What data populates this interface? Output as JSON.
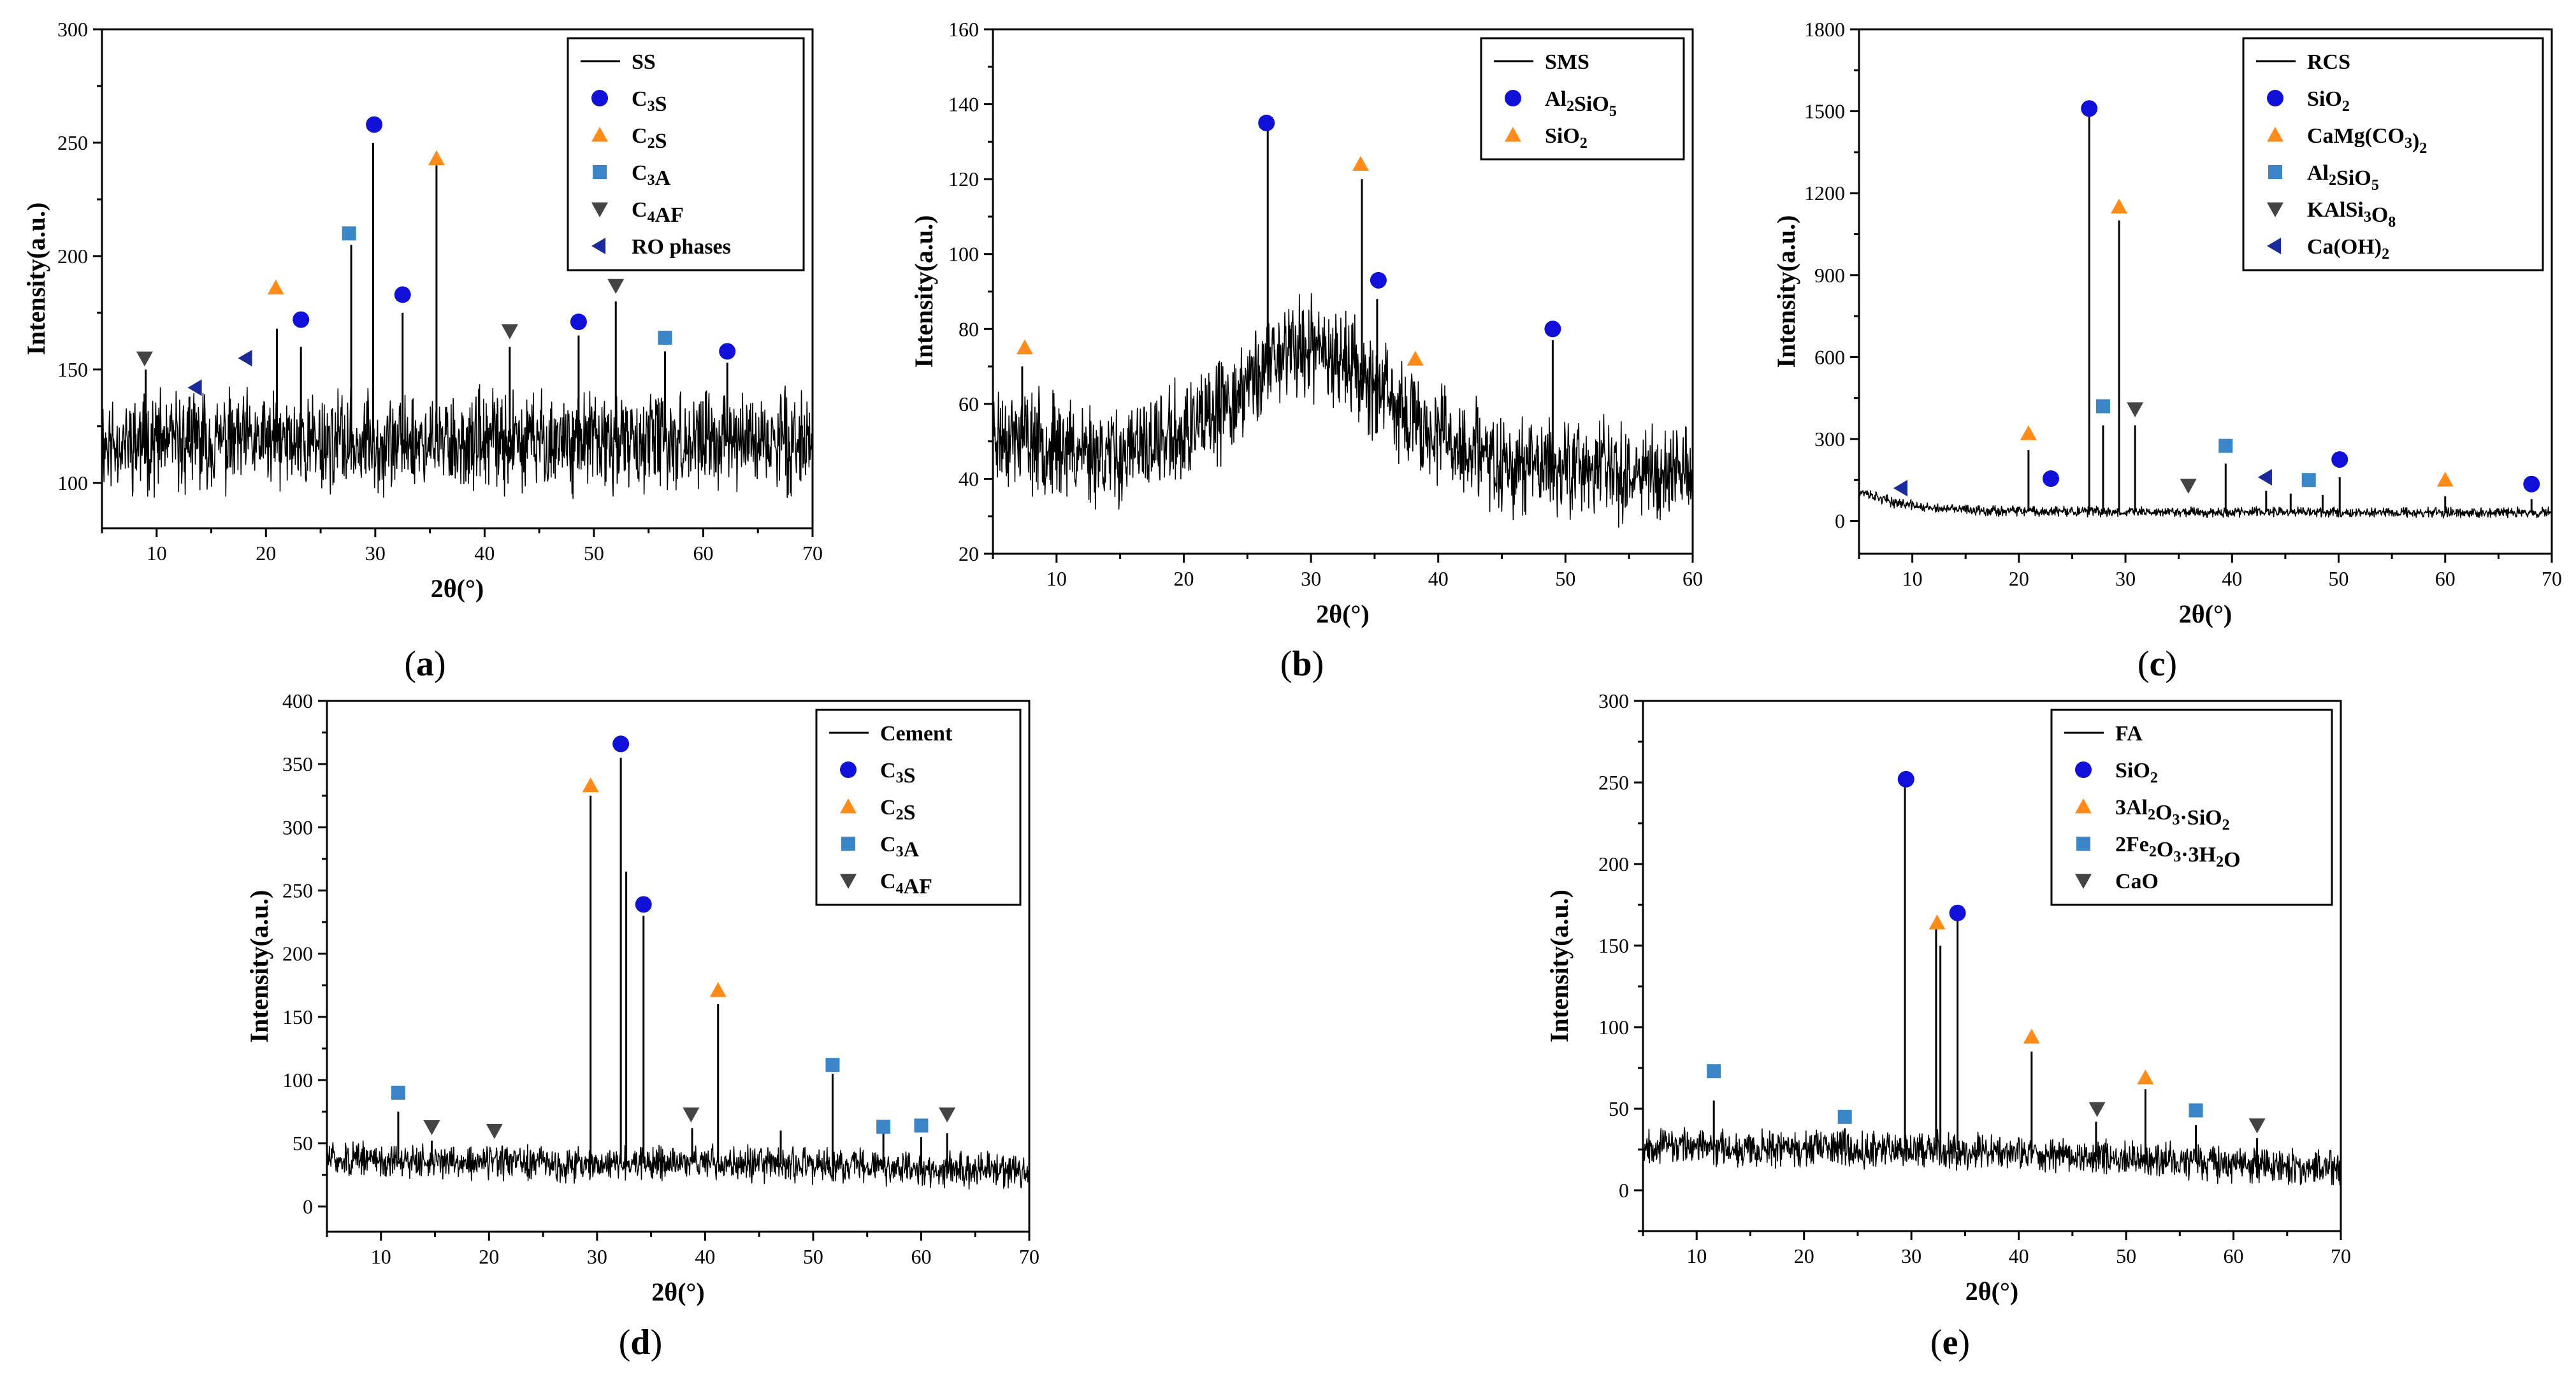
{
  "colors": {
    "circle": "#1010d8",
    "triangle_up": "#ff8c1a",
    "square": "#3a86c8",
    "triangle_down": "#444444",
    "triangle_left": "#1a2a9a",
    "trace": "#000000"
  },
  "chart_data": [
    {
      "id": "a",
      "type": "line",
      "panel_label": "a",
      "xlabel": "2θ(°)",
      "ylabel": "Intensity(a.u.)",
      "xlim": [
        5,
        70
      ],
      "ylim": [
        80,
        300
      ],
      "xticks": [
        10,
        20,
        30,
        40,
        50,
        60,
        70
      ],
      "yticks": [
        100,
        150,
        200,
        250,
        300
      ],
      "background": {
        "baseline": [
          [
            5,
            118
          ],
          [
            70,
            118
          ]
        ],
        "noise": 16,
        "seed": 11
      },
      "peaks": [
        [
          9,
          150
        ],
        [
          13,
          138
        ],
        [
          21,
          168
        ],
        [
          23.2,
          160
        ],
        [
          27.8,
          205
        ],
        [
          29.8,
          250
        ],
        [
          32.5,
          175
        ],
        [
          35.6,
          240
        ],
        [
          42.3,
          160
        ],
        [
          48.6,
          165
        ],
        [
          52,
          180
        ],
        [
          56.5,
          158
        ],
        [
          62.2,
          153
        ]
      ],
      "legend": {
        "position": "top-right",
        "entries": [
          {
            "label": "SS",
            "marker": "line"
          },
          {
            "label": "C₃S",
            "marker": "circle"
          },
          {
            "label": "C₂S",
            "marker": "triangle_up"
          },
          {
            "label": "C₃A",
            "marker": "square"
          },
          {
            "label": "C₄AF",
            "marker": "triangle_down"
          },
          {
            "label": "RO phases",
            "marker": "triangle_left"
          }
        ]
      },
      "markers": [
        {
          "x": 8.9,
          "y": 155,
          "shape": "triangle_down"
        },
        {
          "x": 13.6,
          "y": 142,
          "shape": "triangle_left"
        },
        {
          "x": 18.2,
          "y": 155,
          "shape": "triangle_left"
        },
        {
          "x": 20.9,
          "y": 186,
          "shape": "triangle_up"
        },
        {
          "x": 23.2,
          "y": 172,
          "shape": "circle"
        },
        {
          "x": 27.6,
          "y": 210,
          "shape": "square"
        },
        {
          "x": 29.9,
          "y": 258,
          "shape": "circle"
        },
        {
          "x": 32.5,
          "y": 183,
          "shape": "circle"
        },
        {
          "x": 35.6,
          "y": 243,
          "shape": "triangle_up"
        },
        {
          "x": 42.3,
          "y": 167,
          "shape": "triangle_down"
        },
        {
          "x": 48.6,
          "y": 171,
          "shape": "circle"
        },
        {
          "x": 52,
          "y": 187,
          "shape": "triangle_down"
        },
        {
          "x": 56.5,
          "y": 164,
          "shape": "square"
        },
        {
          "x": 62.2,
          "y": 158,
          "shape": "circle"
        }
      ]
    },
    {
      "id": "b",
      "type": "line",
      "panel_label": "b",
      "xlabel": "2θ(°)",
      "ylabel": "Intensity(a.u.)",
      "xlim": [
        5,
        60
      ],
      "ylim": [
        20,
        160
      ],
      "xticks": [
        10,
        20,
        30,
        40,
        50,
        60
      ],
      "yticks": [
        20,
        40,
        60,
        80,
        100,
        120,
        140,
        160
      ],
      "background": {
        "baseline": [
          [
            5,
            52
          ],
          [
            15,
            46
          ],
          [
            22,
            55
          ],
          [
            28,
            75
          ],
          [
            32,
            74
          ],
          [
            38,
            55
          ],
          [
            45,
            44
          ],
          [
            60,
            42
          ]
        ],
        "noise": 10,
        "seed": 23
      },
      "peaks": [
        [
          7.3,
          70
        ],
        [
          26.6,
          133
        ],
        [
          34,
          120
        ],
        [
          35.2,
          88
        ],
        [
          38.1,
          66
        ],
        [
          49,
          77
        ]
      ],
      "legend": {
        "position": "top-right",
        "entries": [
          {
            "label": "SMS",
            "marker": "line"
          },
          {
            "label": "Al₂SiO₅",
            "marker": "circle"
          },
          {
            "label": "SiO₂",
            "marker": "triangle_up"
          }
        ]
      },
      "markers": [
        {
          "x": 7.5,
          "y": 75,
          "shape": "triangle_up"
        },
        {
          "x": 26.5,
          "y": 135,
          "shape": "circle"
        },
        {
          "x": 33.9,
          "y": 124,
          "shape": "triangle_up"
        },
        {
          "x": 35.3,
          "y": 93,
          "shape": "circle"
        },
        {
          "x": 38.2,
          "y": 72,
          "shape": "triangle_up"
        },
        {
          "x": 49,
          "y": 80,
          "shape": "circle"
        }
      ]
    },
    {
      "id": "c",
      "type": "line",
      "panel_label": "c",
      "xlabel": "2θ(°)",
      "ylabel": "Intensity(a.u.)",
      "xlim": [
        5,
        70
      ],
      "ylim": [
        -120,
        1800
      ],
      "xticks": [
        10,
        20,
        30,
        40,
        50,
        60,
        70
      ],
      "yticks": [
        0,
        300,
        600,
        900,
        1200,
        1500,
        1800
      ],
      "background": {
        "baseline": [
          [
            5,
            110
          ],
          [
            8,
            70
          ],
          [
            12,
            45
          ],
          [
            20,
            35
          ],
          [
            70,
            30
          ]
        ],
        "noise": 14,
        "seed": 37
      },
      "peaks": [
        [
          20.9,
          260
        ],
        [
          26.6,
          1500
        ],
        [
          27.9,
          350
        ],
        [
          29.4,
          1100
        ],
        [
          30.9,
          350
        ],
        [
          39.4,
          210
        ],
        [
          43.2,
          110
        ],
        [
          45.5,
          100
        ],
        [
          48.5,
          95
        ],
        [
          50.1,
          160
        ],
        [
          60,
          90
        ],
        [
          68.1,
          80
        ]
      ],
      "legend": {
        "position": "top-right",
        "entries": [
          {
            "label": "RCS",
            "marker": "line"
          },
          {
            "label": "SiO₂",
            "marker": "circle"
          },
          {
            "label": "CaMg(CO₃)₂",
            "marker": "triangle_up"
          },
          {
            "label": "Al₂SiO₅",
            "marker": "square"
          },
          {
            "label": "KAlSi₃O₈",
            "marker": "triangle_down"
          },
          {
            "label": "Ca(OH)₂",
            "marker": "triangle_left"
          }
        ]
      },
      "markers": [
        {
          "x": 9,
          "y": 120,
          "shape": "triangle_left"
        },
        {
          "x": 20.9,
          "y": 320,
          "shape": "triangle_up"
        },
        {
          "x": 23,
          "y": 155,
          "shape": "circle"
        },
        {
          "x": 26.6,
          "y": 1510,
          "shape": "circle"
        },
        {
          "x": 27.9,
          "y": 420,
          "shape": "square"
        },
        {
          "x": 29.4,
          "y": 1150,
          "shape": "triangle_up"
        },
        {
          "x": 30.9,
          "y": 410,
          "shape": "triangle_down"
        },
        {
          "x": 35.9,
          "y": 130,
          "shape": "triangle_down"
        },
        {
          "x": 39.4,
          "y": 275,
          "shape": "square"
        },
        {
          "x": 43.2,
          "y": 160,
          "shape": "triangle_left"
        },
        {
          "x": 47.2,
          "y": 150,
          "shape": "square"
        },
        {
          "x": 50.1,
          "y": 225,
          "shape": "circle"
        },
        {
          "x": 60,
          "y": 150,
          "shape": "triangle_up"
        },
        {
          "x": 68.1,
          "y": 135,
          "shape": "circle"
        }
      ]
    },
    {
      "id": "d",
      "type": "line",
      "panel_label": "d",
      "xlabel": "2θ(°)",
      "ylabel": "Intensity(a.u.)",
      "xlim": [
        5,
        70
      ],
      "ylim": [
        -20,
        400
      ],
      "xticks": [
        10,
        20,
        30,
        40,
        50,
        60,
        70
      ],
      "yticks": [
        0,
        50,
        100,
        150,
        200,
        250,
        300,
        350,
        400
      ],
      "background": {
        "baseline": [
          [
            5,
            38
          ],
          [
            28,
            33
          ],
          [
            40,
            35
          ],
          [
            70,
            27
          ]
        ],
        "noise": 10,
        "seed": 51
      },
      "peaks": [
        [
          11.6,
          75
        ],
        [
          14.7,
          52
        ],
        [
          29.4,
          325
        ],
        [
          32.2,
          355
        ],
        [
          32.7,
          265
        ],
        [
          34.3,
          230
        ],
        [
          38.8,
          62
        ],
        [
          41.2,
          160
        ],
        [
          47,
          60
        ],
        [
          51.8,
          105
        ],
        [
          56.5,
          58
        ],
        [
          60,
          55
        ],
        [
          62.4,
          58
        ]
      ],
      "legend": {
        "position": "top-right",
        "entries": [
          {
            "label": "Cement",
            "marker": "line"
          },
          {
            "label": "C₃S",
            "marker": "circle"
          },
          {
            "label": "C₂S",
            "marker": "triangle_up"
          },
          {
            "label": "C₃A",
            "marker": "square"
          },
          {
            "label": "C₄AF",
            "marker": "triangle_down"
          }
        ]
      },
      "markers": [
        {
          "x": 11.6,
          "y": 90,
          "shape": "square"
        },
        {
          "x": 14.7,
          "y": 63,
          "shape": "triangle_down"
        },
        {
          "x": 20.5,
          "y": 60,
          "shape": "triangle_down"
        },
        {
          "x": 29.4,
          "y": 333,
          "shape": "triangle_up"
        },
        {
          "x": 32.2,
          "y": 366,
          "shape": "circle"
        },
        {
          "x": 34.3,
          "y": 239,
          "shape": "circle"
        },
        {
          "x": 38.7,
          "y": 73,
          "shape": "triangle_down"
        },
        {
          "x": 41.2,
          "y": 171,
          "shape": "triangle_up"
        },
        {
          "x": 51.8,
          "y": 112,
          "shape": "square"
        },
        {
          "x": 56.5,
          "y": 63,
          "shape": "square"
        },
        {
          "x": 60,
          "y": 64,
          "shape": "square"
        },
        {
          "x": 62.4,
          "y": 73,
          "shape": "triangle_down"
        }
      ]
    },
    {
      "id": "e",
      "type": "line",
      "panel_label": "e",
      "xlabel": "2θ(°)",
      "ylabel": "Intensity(a.u.)",
      "xlim": [
        5,
        70
      ],
      "ylim": [
        -25,
        300
      ],
      "xticks": [
        10,
        20,
        30,
        40,
        50,
        60,
        70
      ],
      "yticks": [
        0,
        50,
        100,
        150,
        200,
        250,
        300
      ],
      "background": {
        "baseline": [
          [
            5,
            28
          ],
          [
            20,
            25
          ],
          [
            30,
            26
          ],
          [
            70,
            13
          ]
        ],
        "noise": 8,
        "seed": 67
      },
      "peaks": [
        [
          11.6,
          55
        ],
        [
          23.8,
          38
        ],
        [
          29.4,
          250
        ],
        [
          32.3,
          160
        ],
        [
          32.7,
          150
        ],
        [
          34.3,
          165
        ],
        [
          41.2,
          85
        ],
        [
          47.2,
          42
        ],
        [
          51.8,
          62
        ],
        [
          56.5,
          40
        ],
        [
          62.2,
          32
        ]
      ],
      "legend": {
        "position": "top-right",
        "entries": [
          {
            "label": "FA",
            "marker": "line"
          },
          {
            "label": "SiO₂",
            "marker": "circle"
          },
          {
            "label": "3Al₂O₃·SiO₂",
            "marker": "triangle_up"
          },
          {
            "label": "2Fe₂O₃·3H₂O",
            "marker": "square"
          },
          {
            "label": "CaO",
            "marker": "triangle_down"
          }
        ]
      },
      "markers": [
        {
          "x": 11.6,
          "y": 73,
          "shape": "square"
        },
        {
          "x": 23.8,
          "y": 45,
          "shape": "square"
        },
        {
          "x": 29.5,
          "y": 252,
          "shape": "circle"
        },
        {
          "x": 32.4,
          "y": 164,
          "shape": "triangle_up"
        },
        {
          "x": 34.3,
          "y": 170,
          "shape": "circle"
        },
        {
          "x": 41.2,
          "y": 94,
          "shape": "triangle_up"
        },
        {
          "x": 47.3,
          "y": 50,
          "shape": "triangle_down"
        },
        {
          "x": 51.8,
          "y": 69,
          "shape": "triangle_up"
        },
        {
          "x": 56.5,
          "y": 49,
          "shape": "square"
        },
        {
          "x": 62.2,
          "y": 40,
          "shape": "triangle_down"
        }
      ]
    }
  ]
}
